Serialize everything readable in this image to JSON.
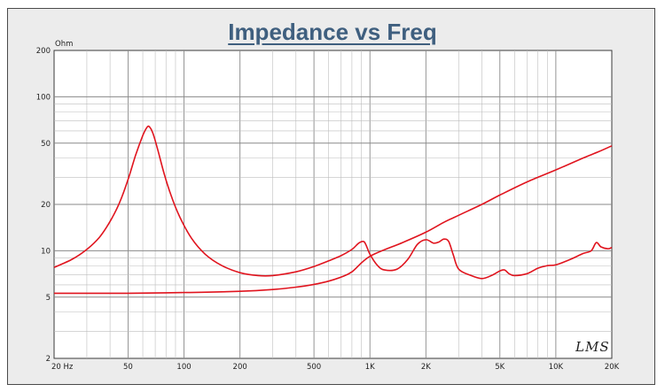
{
  "watermark": "LMS",
  "chart_data": {
    "type": "line",
    "title": "Impedance vs Freq",
    "ylabel_unit": "Ohm",
    "x_scale": "log",
    "y_scale": "log",
    "xlim": [
      20,
      20000
    ],
    "ylim": [
      2,
      200
    ],
    "grid": true,
    "x_ticks": [
      {
        "value": 20,
        "label": "20  Hz"
      },
      {
        "value": 50,
        "label": "50"
      },
      {
        "value": 100,
        "label": "100"
      },
      {
        "value": 200,
        "label": "200"
      },
      {
        "value": 500,
        "label": "500"
      },
      {
        "value": 1000,
        "label": "1K"
      },
      {
        "value": 2000,
        "label": "2K"
      },
      {
        "value": 5000,
        "label": "5K"
      },
      {
        "value": 10000,
        "label": "10K"
      },
      {
        "value": 20000,
        "label": "20K"
      }
    ],
    "y_ticks": [
      {
        "value": 200,
        "label": "200"
      },
      {
        "value": 100,
        "label": "100"
      },
      {
        "value": 50,
        "label": "50"
      },
      {
        "value": 20,
        "label": "20"
      },
      {
        "value": 10,
        "label": "10"
      },
      {
        "value": 5,
        "label": "5"
      },
      {
        "value": 2,
        "label": "2"
      }
    ],
    "line_color": "#e0141e",
    "series": [
      {
        "x": [
          20,
          25,
          30,
          35,
          40,
          45,
          50,
          55,
          60,
          63,
          65,
          68,
          72,
          78,
          85,
          95,
          110,
          130,
          160,
          200,
          250,
          300,
          400,
          500,
          600,
          700,
          800,
          870,
          920,
          950,
          1000,
          1100,
          1200,
          1400,
          1600,
          1800,
          2000,
          2200,
          2350,
          2500,
          2650,
          2800,
          3000,
          3500,
          4000,
          4500,
          5000,
          5300,
          5600,
          6000,
          7000,
          8000,
          9000,
          10000,
          12000,
          14000,
          15500,
          16500,
          17500,
          19000,
          20000
        ],
        "y": [
          7.8,
          8.8,
          10.2,
          12.2,
          15.5,
          20.5,
          29,
          42,
          56,
          63,
          64,
          58,
          46,
          32,
          23,
          16.5,
          12,
          9.5,
          8,
          7.2,
          6.9,
          6.9,
          7.3,
          7.9,
          8.6,
          9.3,
          10.2,
          11.2,
          11.5,
          11,
          9.5,
          8,
          7.5,
          7.6,
          8.8,
          11,
          11.8,
          11.2,
          11.4,
          11.9,
          11.5,
          9.5,
          7.6,
          6.9,
          6.6,
          6.9,
          7.4,
          7.5,
          7.1,
          6.9,
          7.1,
          7.7,
          8,
          8.1,
          8.8,
          9.6,
          10,
          11.3,
          10.6,
          10.3,
          10.5
        ]
      },
      {
        "x": [
          20,
          30,
          50,
          100,
          200,
          300,
          400,
          500,
          600,
          700,
          800,
          1000,
          1500,
          2000,
          2500,
          3000,
          4000,
          5000,
          7000,
          10000,
          14000,
          17000,
          20000
        ],
        "y": [
          5.3,
          5.3,
          5.3,
          5.35,
          5.45,
          5.6,
          5.8,
          6.05,
          6.35,
          6.75,
          7.3,
          9.2,
          11.3,
          13.2,
          15.3,
          17,
          20,
          23,
          28,
          33.5,
          40,
          44,
          48
        ]
      }
    ]
  }
}
